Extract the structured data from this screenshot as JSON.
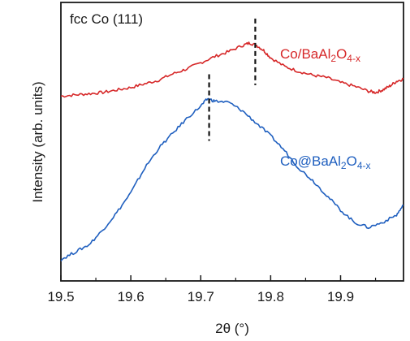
{
  "chart_data": {
    "type": "line",
    "title": "fcc Co (111)",
    "xlabel": "2θ (°)",
    "ylabel": "Intensity (arb. units)",
    "xlim": [
      19.5,
      19.99
    ],
    "xticks": [
      19.5,
      19.6,
      19.7,
      19.8,
      19.9
    ],
    "xtick_labels": [
      "19.5",
      "19.6",
      "19.7",
      "19.8",
      "19.9"
    ],
    "ylim": [
      0,
      1
    ],
    "y_ticks_shown": false,
    "grid": false,
    "series": [
      {
        "name_main": "Co/BaAl",
        "name_sub1": "2",
        "name_mid": "O",
        "name_sub2": "4-x",
        "color": "#d62728",
        "peak_marker_x": 19.778,
        "x": [
          19.5,
          19.52,
          19.54,
          19.56,
          19.58,
          19.6,
          19.62,
          19.64,
          19.66,
          19.68,
          19.7,
          19.72,
          19.74,
          19.76,
          19.77,
          19.78,
          19.79,
          19.8,
          19.82,
          19.84,
          19.86,
          19.88,
          19.9,
          19.92,
          19.94,
          19.95,
          19.96,
          19.97,
          19.98,
          19.99
        ],
        "y": [
          0.71,
          0.715,
          0.72,
          0.725,
          0.735,
          0.745,
          0.76,
          0.775,
          0.8,
          0.82,
          0.845,
          0.87,
          0.89,
          0.915,
          0.925,
          0.915,
          0.895,
          0.865,
          0.83,
          0.81,
          0.795,
          0.785,
          0.765,
          0.75,
          0.73,
          0.725,
          0.735,
          0.75,
          0.77,
          0.78
        ]
      },
      {
        "name_main": "Co@BaAl",
        "name_sub1": "2",
        "name_mid": "O",
        "name_sub2": "4-x",
        "color": "#1f5fbf",
        "peak_marker_x": 19.712,
        "x": [
          19.5,
          19.52,
          19.54,
          19.56,
          19.58,
          19.6,
          19.62,
          19.64,
          19.66,
          19.68,
          19.7,
          19.71,
          19.72,
          19.74,
          19.76,
          19.78,
          19.8,
          19.82,
          19.84,
          19.86,
          19.88,
          19.9,
          19.92,
          19.94,
          19.96,
          19.98,
          19.99
        ],
        "y": [
          0.05,
          0.08,
          0.11,
          0.17,
          0.24,
          0.32,
          0.42,
          0.5,
          0.56,
          0.62,
          0.67,
          0.7,
          0.69,
          0.685,
          0.65,
          0.6,
          0.55,
          0.49,
          0.42,
          0.37,
          0.31,
          0.25,
          0.2,
          0.18,
          0.2,
          0.23,
          0.27
        ]
      }
    ]
  }
}
